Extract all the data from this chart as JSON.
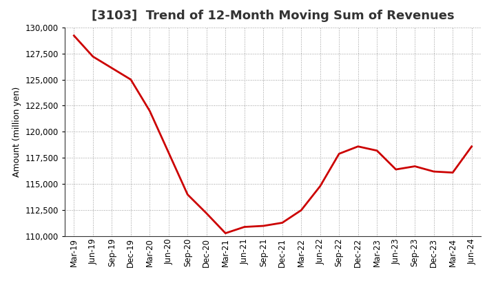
{
  "title": "[3103]  Trend of 12-Month Moving Sum of Revenues",
  "ylabel": "Amount (million yen)",
  "line_color": "#cc0000",
  "background_color": "#ffffff",
  "plot_bg_color": "#ffffff",
  "grid_color": "#999999",
  "ylim": [
    110000,
    130000
  ],
  "yticks": [
    110000,
    112500,
    115000,
    117500,
    120000,
    122500,
    125000,
    127500,
    130000
  ],
  "x_labels": [
    "Mar-19",
    "Jun-19",
    "Sep-19",
    "Dec-19",
    "Mar-20",
    "Jun-20",
    "Sep-20",
    "Dec-20",
    "Mar-21",
    "Jun-21",
    "Sep-21",
    "Dec-21",
    "Mar-22",
    "Jun-22",
    "Sep-22",
    "Dec-22",
    "Mar-23",
    "Jun-23",
    "Sep-23",
    "Dec-23",
    "Mar-24",
    "Jun-24"
  ],
  "values": [
    129200,
    127200,
    126100,
    125000,
    122000,
    118000,
    114000,
    112200,
    110300,
    110900,
    111000,
    111300,
    112500,
    114800,
    117900,
    118600,
    118200,
    116400,
    116700,
    116200,
    116100,
    118600
  ],
  "title_fontsize": 13,
  "tick_fontsize": 8.5,
  "ylabel_fontsize": 9,
  "line_width": 2.0
}
